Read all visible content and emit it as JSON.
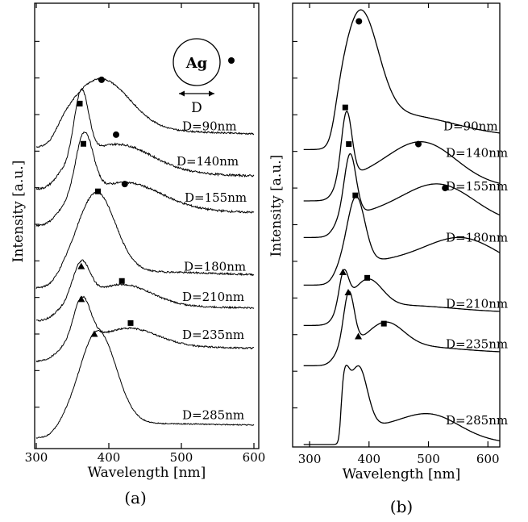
{
  "chart_data": [
    {
      "type": "line",
      "panel_label": "(a)",
      "xlabel": "Wavelength [nm]",
      "ylabel": "Intensity [a.u.]",
      "xlim": [
        300,
        600
      ],
      "x_ticks": [
        300,
        400,
        500,
        600
      ],
      "x_tick_labels": [
        "300",
        "400",
        "500",
        "600"
      ],
      "y_ticks": "unlabeled",
      "grid": false,
      "inset": {
        "particle_label": "Ag",
        "dimension_label": "D"
      },
      "series": [
        {
          "name": "D=90nm",
          "baseline": 8.45,
          "peaks": [
            {
              "x": 388,
              "h": 1.45,
              "w": 40
            }
          ],
          "tail": 0.1,
          "noise": 0.04,
          "markers": [
            {
              "x": 390,
              "symbol": "circle",
              "value": 9.95
            }
          ]
        },
        {
          "name": "D=140nm",
          "baseline": 7.3,
          "peaks": [
            {
              "x": 362,
              "h": 1.85,
              "w": 10
            },
            {
              "x": 410,
              "h": 0.8,
              "w": 48
            }
          ],
          "tail": 0.1,
          "noise": 0.055,
          "markers": [
            {
              "x": 360,
              "symbol": "square",
              "value": 9.3
            },
            {
              "x": 410,
              "symbol": "circle",
              "value": 8.45
            }
          ]
        },
        {
          "name": "D=155nm",
          "baseline": 6.3,
          "peaks": [
            {
              "x": 366,
              "h": 1.75,
              "w": 12
            },
            {
              "x": 420,
              "h": 0.75,
              "w": 50
            }
          ],
          "tail": 0.1,
          "noise": 0.055,
          "markers": [
            {
              "x": 365,
              "symbol": "square",
              "value": 8.2
            },
            {
              "x": 422,
              "symbol": "circle",
              "value": 7.1
            }
          ]
        },
        {
          "name": "D=180nm",
          "baseline": 4.6,
          "peaks": [
            {
              "x": 383,
              "h": 2.2,
              "w": 26
            }
          ],
          "tail": 0.1,
          "noise": 0.045,
          "markers": [
            {
              "x": 385,
              "symbol": "square",
              "value": 6.9
            }
          ]
        },
        {
          "name": "D=210nm",
          "baseline": 3.7,
          "peaks": [
            {
              "x": 362,
              "h": 1.05,
              "w": 12
            },
            {
              "x": 418,
              "h": 0.6,
              "w": 40
            }
          ],
          "tail": 0.06,
          "noise": 0.045,
          "markers": [
            {
              "x": 362,
              "symbol": "triangle",
              "value": 4.85
            },
            {
              "x": 418,
              "symbol": "square",
              "value": 4.45
            }
          ]
        },
        {
          "name": "D=235nm",
          "baseline": 2.6,
          "peaks": [
            {
              "x": 363,
              "h": 1.25,
              "w": 12
            },
            {
              "x": 427,
              "h": 0.5,
              "w": 40
            }
          ],
          "tail": 0.06,
          "noise": 0.045,
          "markers": [
            {
              "x": 362,
              "symbol": "triangle",
              "value": 3.95
            },
            {
              "x": 430,
              "symbol": "square",
              "value": 3.3
            }
          ]
        },
        {
          "name": "D=285nm",
          "baseline": 0.5,
          "peaks": [
            {
              "x": 385,
              "h": 2.55,
              "w": 25
            }
          ],
          "tail": 0.05,
          "noise": 0.03,
          "markers": [
            {
              "x": 380,
              "symbol": "triangle",
              "value": 3.0
            }
          ]
        }
      ]
    },
    {
      "type": "line",
      "panel_label": "(b)",
      "xlabel": "Wavelength [nm]",
      "ylabel": "Intensity [a.u.]",
      "xlim": [
        285,
        620
      ],
      "x_ticks": [
        300,
        400,
        500,
        600
      ],
      "x_tick_labels": [
        "300",
        "400",
        "500",
        "600"
      ],
      "y_ticks": "unlabeled",
      "grid": false,
      "series": [
        {
          "name": "D=90nm",
          "baseline": 8.4,
          "peaks": [
            {
              "x": 385,
              "h": 3.0,
              "w": 30
            }
          ],
          "tail": 0.6,
          "noise": 0,
          "markers": [
            {
              "x": 383,
              "symbol": "circle",
              "value": 11.55
            }
          ]
        },
        {
          "name": "D=140nm",
          "baseline": 7.0,
          "peaks": [
            {
              "x": 362,
              "h": 1.85,
              "w": 9
            },
            {
              "x": 492,
              "h": 0.9,
              "w": 55
            }
          ],
          "tail": 0.4,
          "noise": 0,
          "markers": [
            {
              "x": 360,
              "symbol": "square",
              "value": 9.2
            },
            {
              "x": 483,
              "symbol": "circle",
              "value": 8.2
            }
          ]
        },
        {
          "name": "D=155nm",
          "baseline": 6.0,
          "peaks": [
            {
              "x": 368,
              "h": 1.7,
              "w": 10
            },
            {
              "x": 522,
              "h": 0.85,
              "w": 58
            }
          ],
          "tail": 0.35,
          "noise": 0,
          "markers": [
            {
              "x": 366,
              "symbol": "square",
              "value": 8.2
            },
            {
              "x": 528,
              "symbol": "circle",
              "value": 7.0
            }
          ]
        },
        {
          "name": "D=180nm",
          "baseline": 4.7,
          "peaks": [
            {
              "x": 378,
              "h": 1.85,
              "w": 15
            },
            {
              "x": 560,
              "h": 0.8,
              "w": 60
            }
          ],
          "tail": 0.3,
          "noise": 0,
          "markers": [
            {
              "x": 377,
              "symbol": "square",
              "value": 6.8
            }
          ]
        },
        {
          "name": "D=210nm",
          "baseline": 3.6,
          "peaks": [
            {
              "x": 357,
              "h": 0.95,
              "w": 8
            },
            {
              "x": 398,
              "h": 0.75,
              "w": 24
            }
          ],
          "tail": 0.2,
          "noise": 0,
          "markers": [
            {
              "x": 356,
              "symbol": "triangle",
              "value": 4.7
            },
            {
              "x": 397,
              "symbol": "square",
              "value": 4.55
            }
          ]
        },
        {
          "name": "D=235nm",
          "baseline": 2.5,
          "peaks": [
            {
              "x": 366,
              "h": 1.5,
              "w": 9
            },
            {
              "x": 428,
              "h": 0.65,
              "w": 30
            }
          ],
          "tail": 0.2,
          "noise": 0,
          "markers": [
            {
              "x": 365,
              "symbol": "triangle",
              "value": 4.15
            },
            {
              "x": 425,
              "symbol": "square",
              "value": 3.3
            }
          ]
        },
        {
          "name": "D=285nm",
          "baseline": 0.0,
          "peaks": [
            {
              "x": 358,
              "h": 1.3,
              "w": 8
            },
            {
              "x": 382,
              "h": 1.75,
              "w": 15
            },
            {
              "x": 508,
              "h": 0.42,
              "w": 45
            }
          ],
          "tail": 0.5,
          "noise": 0,
          "edge": 352,
          "markers": [
            {
              "x": 382,
              "symbol": "triangle",
              "value": 2.95
            }
          ]
        }
      ]
    }
  ]
}
